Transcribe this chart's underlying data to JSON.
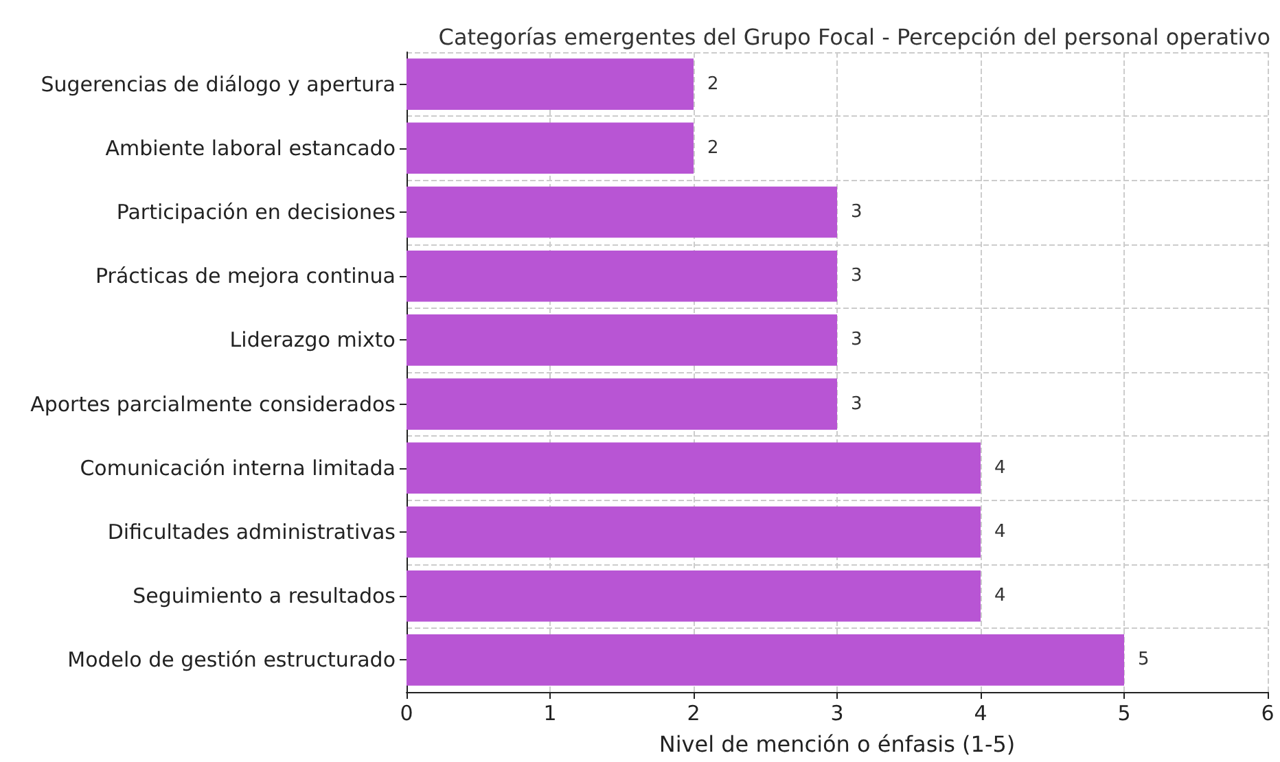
{
  "chart_data": {
    "type": "bar",
    "orientation": "horizontal",
    "title": "Categorías emergentes del Grupo Focal - Percepción del personal operativo",
    "xlabel": "Nivel de mención o énfasis (1-5)",
    "categories": [
      "Sugerencias de diálogo y apertura",
      "Ambiente laboral estancado",
      "Participación en decisiones",
      "Prácticas de mejora continua",
      "Liderazgo mixto",
      "Aportes parcialmente considerados",
      "Comunicación interna limitada",
      "Dificultades administrativas",
      "Seguimiento a resultados",
      "Modelo de gestión estructurado"
    ],
    "values": [
      2,
      2,
      3,
      3,
      3,
      3,
      4,
      4,
      4,
      5
    ],
    "color": "#b855d4",
    "xlim": [
      0,
      6
    ],
    "xticks": [
      0,
      1,
      2,
      3,
      4,
      5,
      6
    ],
    "grid": true,
    "data_labels": true
  }
}
